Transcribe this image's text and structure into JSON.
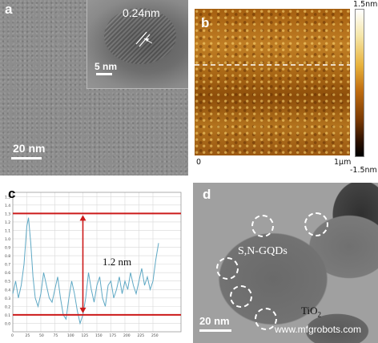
{
  "panels": {
    "a": {
      "letter": "a",
      "lattice_spacing": "0.24nm",
      "inset_scale": "5 nm",
      "scale": "20 nm"
    },
    "b": {
      "letter": "b",
      "colorbar_max": "1.5nm",
      "colorbar_min": "-1.5nm",
      "axis_start": "0",
      "axis_end": "1μm"
    },
    "c": {
      "letter": "c",
      "annotation": "1.2 nm"
    },
    "d": {
      "letter": "d",
      "label_qd": "S,N-GQDs",
      "label_substrate": "TiO",
      "label_substrate_sub": "2",
      "scale": "20 nm"
    }
  },
  "watermark": "www.mfgrobots.com",
  "chart_data": {
    "type": "line",
    "title": "",
    "xlabel": "",
    "ylabel": "",
    "xlim": [
      0,
      300
    ],
    "ylim": [
      -0.1,
      1.55
    ],
    "x_ticks": [
      0,
      25,
      50,
      75,
      100,
      125,
      150,
      175,
      200,
      225,
      250
    ],
    "y_ticks": [
      0.0,
      0.1,
      0.2,
      0.3,
      0.4,
      0.5,
      0.6,
      0.7,
      0.8,
      0.9,
      1.0,
      1.1,
      1.2,
      1.3,
      1.4,
      1.5
    ],
    "grid": true,
    "reference_lines": [
      1.3,
      0.1
    ],
    "annotation": "1.2 nm",
    "series": [
      {
        "x": [
          0,
          5,
          10,
          15,
          20,
          25,
          28,
          32,
          36,
          40,
          45,
          50,
          55,
          60,
          65,
          70,
          75,
          80,
          85,
          90,
          95,
          100,
          105,
          110,
          115,
          120,
          125,
          130,
          135,
          140,
          145,
          150,
          155,
          160,
          165,
          170,
          175,
          180,
          185,
          190,
          195,
          200,
          205,
          210,
          215,
          220,
          225,
          230,
          235,
          240,
          245,
          250,
          255,
          260
        ],
        "values": [
          0.35,
          0.5,
          0.3,
          0.45,
          0.7,
          1.15,
          1.25,
          0.95,
          0.55,
          0.3,
          0.2,
          0.35,
          0.6,
          0.45,
          0.3,
          0.25,
          0.4,
          0.55,
          0.3,
          0.1,
          0.05,
          0.3,
          0.5,
          0.35,
          0.15,
          0.0,
          0.1,
          0.3,
          0.6,
          0.4,
          0.25,
          0.45,
          0.55,
          0.3,
          0.2,
          0.45,
          0.5,
          0.3,
          0.4,
          0.55,
          0.35,
          0.5,
          0.4,
          0.6,
          0.45,
          0.35,
          0.5,
          0.65,
          0.45,
          0.55,
          0.4,
          0.5,
          0.75,
          0.95
        ]
      }
    ]
  }
}
